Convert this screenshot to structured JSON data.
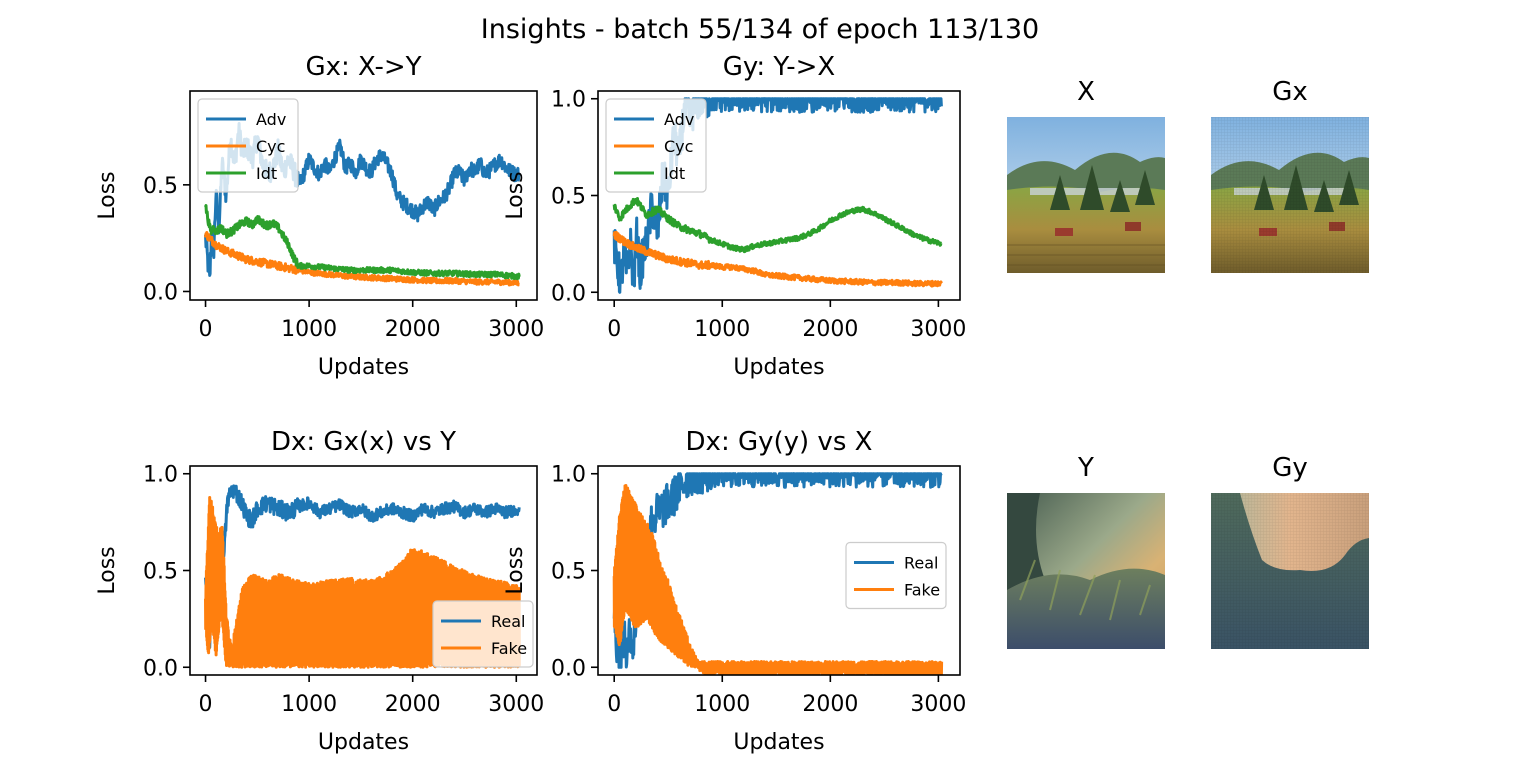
{
  "figure": {
    "suptitle": "Insights - batch 55/134 of epoch 113/130"
  },
  "colors": {
    "blue": "#1f77b4",
    "orange": "#ff7f0e",
    "green": "#2ca02c"
  },
  "chart_data": [
    {
      "id": "gx",
      "type": "line",
      "title": "Gx: X->Y",
      "xlabel": "Updates",
      "ylabel": "Loss",
      "xlim": [
        -150,
        3200
      ],
      "ylim": [
        -0.04,
        0.94
      ],
      "xticks": [
        0,
        1000,
        2000,
        3000
      ],
      "yticks": [
        0.0,
        0.5
      ],
      "yticklabels": [
        "0.0",
        "0.5"
      ],
      "legend": "top-left",
      "series": [
        {
          "name": "Adv",
          "color": "#1f77b4",
          "noise": 0.035,
          "x": [
            0,
            20,
            40,
            60,
            80,
            100,
            130,
            160,
            200,
            240,
            280,
            320,
            360,
            400,
            450,
            500,
            550,
            600,
            650,
            700,
            750,
            800,
            850,
            900,
            950,
            1000,
            1050,
            1100,
            1150,
            1200,
            1250,
            1300,
            1350,
            1400,
            1450,
            1500,
            1550,
            1600,
            1650,
            1700,
            1750,
            1800,
            1850,
            1900,
            1950,
            2000,
            2050,
            2100,
            2150,
            2200,
            2250,
            2300,
            2350,
            2400,
            2450,
            2500,
            2550,
            2600,
            2650,
            2700,
            2750,
            2800,
            2850,
            2900,
            2950,
            3000,
            3030
          ],
          "y": [
            0.25,
            0.15,
            0.05,
            0.3,
            0.2,
            0.45,
            0.3,
            0.6,
            0.45,
            0.72,
            0.6,
            0.75,
            0.65,
            0.68,
            0.62,
            0.72,
            0.6,
            0.55,
            0.58,
            0.66,
            0.56,
            0.62,
            0.57,
            0.5,
            0.55,
            0.62,
            0.58,
            0.55,
            0.6,
            0.56,
            0.63,
            0.68,
            0.58,
            0.6,
            0.56,
            0.62,
            0.58,
            0.56,
            0.62,
            0.64,
            0.6,
            0.55,
            0.45,
            0.42,
            0.4,
            0.38,
            0.36,
            0.4,
            0.42,
            0.38,
            0.42,
            0.44,
            0.48,
            0.55,
            0.56,
            0.52,
            0.58,
            0.56,
            0.6,
            0.55,
            0.57,
            0.6,
            0.62,
            0.58,
            0.56,
            0.55,
            0.55
          ]
        },
        {
          "name": "Cyc",
          "color": "#ff7f0e",
          "noise": 0.012,
          "x": [
            0,
            100,
            200,
            300,
            400,
            500,
            600,
            700,
            800,
            900,
            1000,
            1200,
            1400,
            1600,
            1800,
            2000,
            2200,
            2400,
            2600,
            2800,
            3030
          ],
          "y": [
            0.27,
            0.22,
            0.19,
            0.17,
            0.15,
            0.14,
            0.13,
            0.12,
            0.11,
            0.1,
            0.09,
            0.08,
            0.07,
            0.065,
            0.06,
            0.055,
            0.05,
            0.05,
            0.045,
            0.045,
            0.04
          ]
        },
        {
          "name": "Idt",
          "color": "#2ca02c",
          "noise": 0.012,
          "x": [
            0,
            20,
            40,
            60,
            80,
            100,
            150,
            200,
            250,
            300,
            350,
            400,
            450,
            500,
            550,
            600,
            650,
            700,
            750,
            800,
            850,
            900,
            1000,
            1200,
            1400,
            1600,
            1800,
            2000,
            2200,
            2400,
            2600,
            2800,
            3030
          ],
          "y": [
            0.4,
            0.35,
            0.3,
            0.28,
            0.3,
            0.28,
            0.3,
            0.27,
            0.28,
            0.3,
            0.32,
            0.33,
            0.31,
            0.34,
            0.32,
            0.31,
            0.32,
            0.3,
            0.26,
            0.22,
            0.16,
            0.12,
            0.12,
            0.11,
            0.1,
            0.1,
            0.1,
            0.09,
            0.085,
            0.085,
            0.08,
            0.08,
            0.07
          ]
        }
      ]
    },
    {
      "id": "gy",
      "type": "line",
      "title": "Gy: Y->X",
      "xlabel": "Updates",
      "ylabel": "Loss",
      "xlim": [
        -150,
        3200
      ],
      "ylim": [
        -0.04,
        1.04
      ],
      "xticks": [
        0,
        1000,
        2000,
        3000
      ],
      "yticks": [
        0.0,
        0.5,
        1.0
      ],
      "yticklabels": [
        "0.0",
        "0.5",
        "1.0"
      ],
      "legend": "top-left",
      "series": [
        {
          "name": "Adv",
          "color": "#1f77b4",
          "noise": 0.07,
          "x": [
            0,
            30,
            60,
            90,
            120,
            150,
            180,
            210,
            240,
            270,
            300,
            350,
            400,
            450,
            500,
            550,
            600,
            650,
            700,
            750,
            800,
            850,
            900,
            3030
          ],
          "y": [
            0.25,
            0.15,
            0.05,
            0.2,
            0.1,
            0.25,
            0.05,
            0.3,
            0.1,
            0.2,
            0.25,
            0.45,
            0.3,
            0.6,
            0.5,
            0.8,
            0.7,
            0.95,
            0.9,
            0.97,
            1.0,
            1.0,
            1.0,
            1.0
          ]
        },
        {
          "name": "Cyc",
          "color": "#ff7f0e",
          "noise": 0.013,
          "x": [
            0,
            100,
            200,
            300,
            400,
            500,
            600,
            700,
            800,
            900,
            1000,
            1100,
            1200,
            1300,
            1400,
            1600,
            1800,
            2000,
            2200,
            2400,
            2600,
            2800,
            3030
          ],
          "y": [
            0.3,
            0.26,
            0.23,
            0.21,
            0.19,
            0.17,
            0.16,
            0.15,
            0.14,
            0.14,
            0.13,
            0.13,
            0.12,
            0.11,
            0.09,
            0.08,
            0.07,
            0.06,
            0.055,
            0.05,
            0.05,
            0.045,
            0.045
          ]
        },
        {
          "name": "Idt",
          "color": "#2ca02c",
          "noise": 0.012,
          "x": [
            0,
            50,
            100,
            150,
            200,
            300,
            400,
            500,
            600,
            700,
            800,
            900,
            1000,
            1100,
            1200,
            1300,
            1400,
            1500,
            1600,
            1700,
            1800,
            1900,
            2000,
            2100,
            2200,
            2300,
            2400,
            2500,
            2600,
            2700,
            2800,
            2900,
            3030
          ],
          "y": [
            0.45,
            0.38,
            0.42,
            0.45,
            0.48,
            0.4,
            0.43,
            0.38,
            0.34,
            0.32,
            0.3,
            0.27,
            0.25,
            0.23,
            0.22,
            0.24,
            0.25,
            0.26,
            0.27,
            0.28,
            0.3,
            0.33,
            0.37,
            0.4,
            0.42,
            0.43,
            0.41,
            0.38,
            0.35,
            0.32,
            0.29,
            0.27,
            0.25
          ]
        }
      ]
    },
    {
      "id": "dx1",
      "type": "line",
      "title": "Dx: Gx(x) vs Y",
      "xlabel": "Updates",
      "ylabel": "Loss",
      "xlim": [
        -150,
        3200
      ],
      "ylim": [
        -0.04,
        1.04
      ],
      "xticks": [
        0,
        1000,
        2000,
        3000
      ],
      "yticks": [
        0.0,
        0.5,
        1.0
      ],
      "yticklabels": [
        "0.0",
        "0.5",
        "1.0"
      ],
      "legend": "bottom-right",
      "series": [
        {
          "name": "Real",
          "color": "#1f77b4",
          "noise": 0.03,
          "x": [
            0,
            20,
            40,
            60,
            80,
            100,
            120,
            150,
            180,
            210,
            240,
            270,
            300,
            350,
            400,
            450,
            500,
            600,
            700,
            800,
            900,
            1000,
            1100,
            1200,
            1300,
            1400,
            1500,
            1600,
            1700,
            1800,
            1900,
            2000,
            2100,
            2200,
            2300,
            2400,
            2500,
            2600,
            2700,
            2800,
            2900,
            3030
          ],
          "y": [
            0.5,
            0.3,
            0.1,
            0.55,
            0.2,
            0.6,
            0.3,
            0.7,
            0.6,
            0.85,
            0.9,
            0.92,
            0.9,
            0.85,
            0.78,
            0.76,
            0.82,
            0.85,
            0.82,
            0.8,
            0.83,
            0.85,
            0.8,
            0.82,
            0.84,
            0.8,
            0.82,
            0.78,
            0.8,
            0.82,
            0.8,
            0.78,
            0.82,
            0.8,
            0.82,
            0.83,
            0.8,
            0.82,
            0.8,
            0.82,
            0.8,
            0.82
          ]
        },
        {
          "name": "Fake",
          "color": "#ff7f0e",
          "band": true,
          "x": [
            0,
            40,
            80,
            120,
            160,
            200,
            230,
            260,
            300,
            350,
            400,
            450,
            500,
            600,
            700,
            800,
            900,
            1000,
            1200,
            1400,
            1600,
            1800,
            1900,
            2000,
            2100,
            2200,
            2300,
            2400,
            2500,
            2600,
            2700,
            2800,
            2900,
            3030
          ],
          "y": [
            0.4,
            0.9,
            0.8,
            0.7,
            0.75,
            0.3,
            0.15,
            0.12,
            0.25,
            0.4,
            0.45,
            0.48,
            0.47,
            0.45,
            0.48,
            0.47,
            0.45,
            0.44,
            0.45,
            0.46,
            0.45,
            0.5,
            0.55,
            0.62,
            0.6,
            0.58,
            0.55,
            0.52,
            0.5,
            0.48,
            0.46,
            0.45,
            0.44,
            0.42
          ],
          "low_x": [
            0,
            30,
            60,
            100,
            150,
            200,
            240,
            3030
          ],
          "low_y": [
            0.2,
            0.05,
            0.25,
            0.05,
            0.3,
            0.0,
            0.0,
            0.0
          ]
        }
      ]
    },
    {
      "id": "dx2",
      "type": "line",
      "title": "Dx: Gy(y) vs X",
      "xlabel": "Updates",
      "ylabel": "Loss",
      "xlim": [
        -150,
        3200
      ],
      "ylim": [
        -0.04,
        1.04
      ],
      "xticks": [
        0,
        1000,
        2000,
        3000
      ],
      "yticks": [
        0.0,
        0.5,
        1.0
      ],
      "yticklabels": [
        "0.0",
        "0.5",
        "1.0"
      ],
      "legend": "center-right",
      "series": [
        {
          "name": "Real",
          "color": "#1f77b4",
          "noise": 0.07,
          "x": [
            0,
            30,
            60,
            90,
            120,
            150,
            180,
            210,
            240,
            270,
            300,
            350,
            400,
            450,
            500,
            550,
            600,
            650,
            700,
            750,
            3030
          ],
          "y": [
            0.25,
            0.1,
            0.05,
            0.15,
            0.05,
            0.2,
            0.1,
            0.35,
            0.5,
            0.6,
            0.7,
            0.75,
            0.8,
            0.82,
            0.85,
            0.88,
            0.92,
            0.96,
            0.99,
            1.0,
            1.0
          ]
        },
        {
          "name": "Fake",
          "color": "#ff7f0e",
          "band": true,
          "x": [
            0,
            50,
            100,
            150,
            200,
            250,
            300,
            350,
            400,
            450,
            500,
            550,
            600,
            650,
            700,
            750,
            800,
            850,
            3030
          ],
          "y": [
            0.5,
            0.8,
            0.95,
            0.9,
            0.85,
            0.8,
            0.75,
            0.7,
            0.6,
            0.5,
            0.45,
            0.35,
            0.28,
            0.2,
            0.12,
            0.06,
            0.02,
            0.0,
            0.0
          ],
          "low_x": [
            0,
            50,
            100,
            200,
            300,
            400,
            500,
            600,
            700,
            850,
            3030
          ],
          "low_y": [
            0.2,
            0.1,
            0.3,
            0.2,
            0.25,
            0.15,
            0.1,
            0.05,
            0.0,
            0.0,
            0.0
          ]
        }
      ]
    }
  ],
  "images": {
    "x": {
      "title": "X",
      "kind": "landscape"
    },
    "gx": {
      "title": "Gx",
      "kind": "landscape"
    },
    "y": {
      "title": "Y",
      "kind": "painting"
    },
    "gy": {
      "title": "Gy",
      "kind": "painting-generated"
    }
  }
}
